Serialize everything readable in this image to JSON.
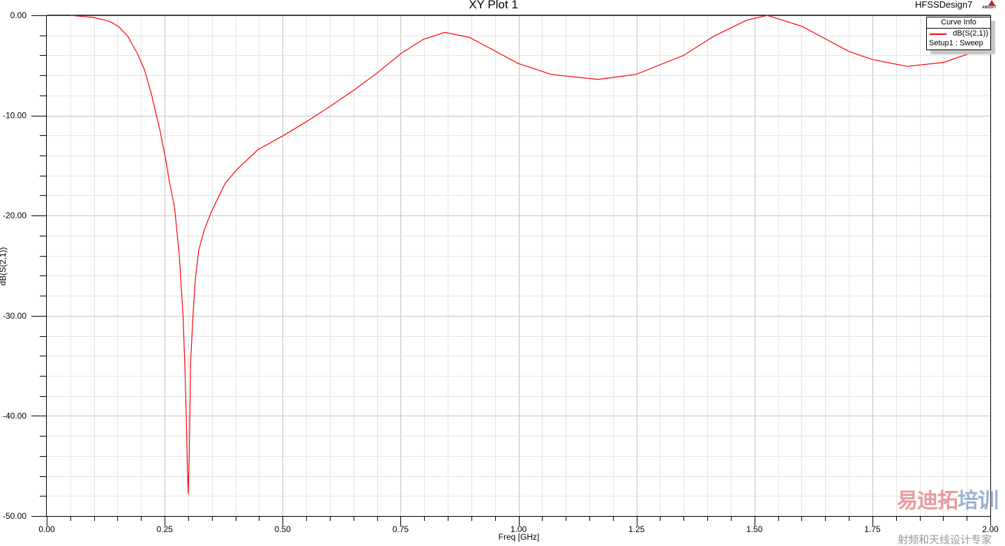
{
  "header": {
    "design_name": "HFSSDesign7",
    "logo_text": "ANSOFT"
  },
  "legend": {
    "title": "Curve Info",
    "curve_name": "dB(S(2,1))",
    "setup": "Setup1 : Sweep"
  },
  "watermark": {
    "brand_a": "易迪拓",
    "brand_b": "培训",
    "tagline": "射频和天线设计专家"
  },
  "chart_data": {
    "type": "line",
    "title": "XY Plot 1",
    "xlabel": "Freq [GHz]",
    "ylabel": "dB(S(2,1))",
    "xlim": [
      0,
      2
    ],
    "ylim": [
      -50,
      0
    ],
    "x_ticks": [
      "0.00",
      "0.25",
      "0.50",
      "0.75",
      "1.00",
      "1.25",
      "1.50",
      "1.75",
      "2.00"
    ],
    "y_ticks": [
      "0.00",
      "-10.00",
      "-20.00",
      "-30.00",
      "-40.00",
      "-50.00"
    ],
    "grid": true,
    "legend_position": "top-right",
    "series": [
      {
        "name": "dB(S(2,1))",
        "color": "#ff0000",
        "x": [
          0.05,
          0.098,
          0.133,
          0.152,
          0.172,
          0.192,
          0.207,
          0.222,
          0.231,
          0.241,
          0.251,
          0.26,
          0.271,
          0.281,
          0.289,
          0.293,
          0.296,
          0.298,
          0.3,
          0.302,
          0.303,
          0.305,
          0.31,
          0.315,
          0.322,
          0.334,
          0.349,
          0.378,
          0.403,
          0.448,
          0.502,
          0.551,
          0.6,
          0.65,
          0.699,
          0.751,
          0.798,
          0.843,
          0.896,
          0.936,
          0.999,
          1.069,
          1.168,
          1.249,
          1.35,
          1.413,
          1.483,
          1.527,
          1.601,
          1.7,
          1.749,
          1.823,
          1.901,
          1.975,
          2.0
        ],
        "y": [
          0,
          -0.2,
          -0.6,
          -1.1,
          -2.1,
          -3.8,
          -5.4,
          -7.9,
          -9.7,
          -11.7,
          -14.1,
          -16.6,
          -19.2,
          -24.0,
          -30.0,
          -35.4,
          -40.2,
          -45.0,
          -47.8,
          -44.0,
          -41.0,
          -34.7,
          -30.0,
          -26.3,
          -23.5,
          -21.4,
          -19.6,
          -16.8,
          -15.4,
          -13.4,
          -12.0,
          -10.6,
          -9.1,
          -7.5,
          -5.8,
          -3.8,
          -2.4,
          -1.7,
          -2.2,
          -3.2,
          -4.8,
          -5.9,
          -6.4,
          -5.9,
          -4.0,
          -2.1,
          -0.5,
          0,
          -1.1,
          -3.6,
          -4.4,
          -5.1,
          -4.7,
          -3.5,
          -2.9
        ]
      }
    ]
  }
}
